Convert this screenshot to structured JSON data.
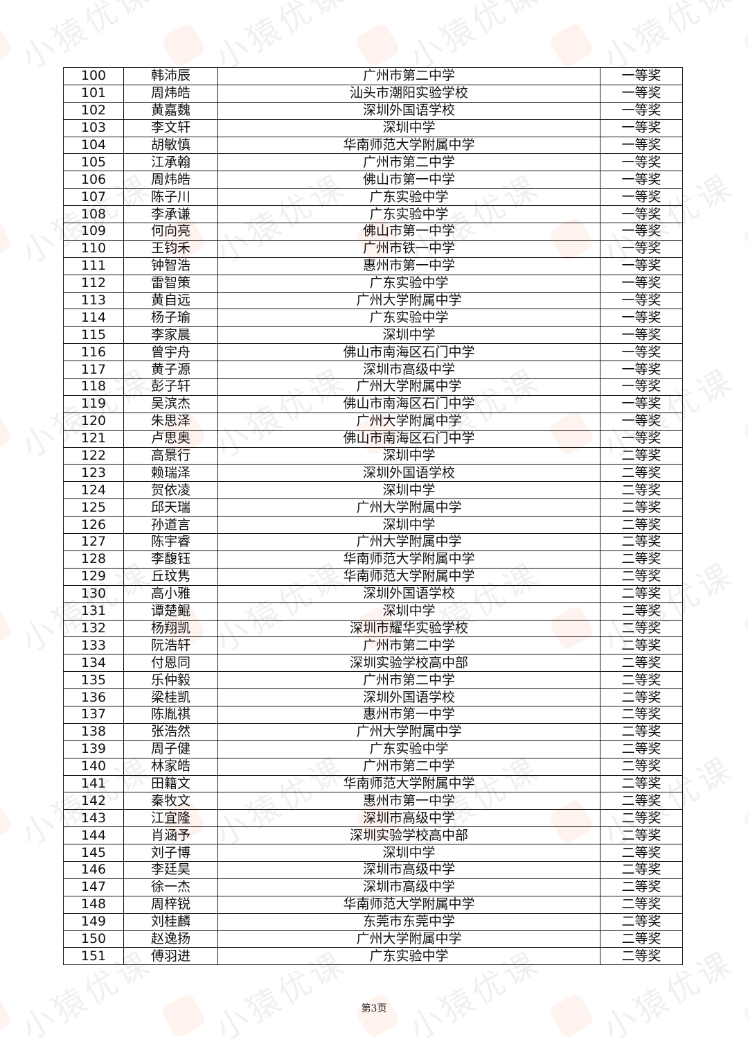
{
  "watermark": "小猿优课",
  "footer": {
    "page_label": "第3页"
  },
  "table": {
    "rows": [
      [
        "100",
        "韩沛辰",
        "广州市第二中学",
        "一等奖"
      ],
      [
        "101",
        "周炜皓",
        "汕头市潮阳实验学校",
        "一等奖"
      ],
      [
        "102",
        "黄嘉魏",
        "深圳外国语学校",
        "一等奖"
      ],
      [
        "103",
        "李文轩",
        "深圳中学",
        "一等奖"
      ],
      [
        "104",
        "胡敏慎",
        "华南师范大学附属中学",
        "一等奖"
      ],
      [
        "105",
        "江承翰",
        "广州市第二中学",
        "一等奖"
      ],
      [
        "106",
        "周炜皓",
        "佛山市第一中学",
        "一等奖"
      ],
      [
        "107",
        "陈子川",
        "广东实验中学",
        "一等奖"
      ],
      [
        "108",
        "李承谦",
        "广东实验中学",
        "一等奖"
      ],
      [
        "109",
        "何向亮",
        "佛山市第一中学",
        "一等奖"
      ],
      [
        "110",
        "王钧禾",
        "广州市铁一中学",
        "一等奖"
      ],
      [
        "111",
        "钟智浩",
        "惠州市第一中学",
        "一等奖"
      ],
      [
        "112",
        "雷智策",
        "广东实验中学",
        "一等奖"
      ],
      [
        "113",
        "黄自远",
        "广州大学附属中学",
        "一等奖"
      ],
      [
        "114",
        "杨子瑜",
        "广东实验中学",
        "一等奖"
      ],
      [
        "115",
        "李家晨",
        "深圳中学",
        "一等奖"
      ],
      [
        "116",
        "曾宇舟",
        "佛山市南海区石门中学",
        "一等奖"
      ],
      [
        "117",
        "黄子源",
        "深圳市高级中学",
        "一等奖"
      ],
      [
        "118",
        "彭子轩",
        "广州大学附属中学",
        "一等奖"
      ],
      [
        "119",
        "吴滨杰",
        "佛山市南海区石门中学",
        "一等奖"
      ],
      [
        "120",
        "朱思泽",
        "广州大学附属中学",
        "一等奖"
      ],
      [
        "121",
        "卢思奥",
        "佛山市南海区石门中学",
        "一等奖"
      ],
      [
        "122",
        "高景行",
        "深圳中学",
        "二等奖"
      ],
      [
        "123",
        "赖瑞泽",
        "深圳外国语学校",
        "二等奖"
      ],
      [
        "124",
        "贺依凌",
        "深圳中学",
        "二等奖"
      ],
      [
        "125",
        "邱天瑞",
        "广州大学附属中学",
        "二等奖"
      ],
      [
        "126",
        "孙道言",
        "深圳中学",
        "二等奖"
      ],
      [
        "127",
        "陈宇睿",
        "广州大学附属中学",
        "二等奖"
      ],
      [
        "128",
        "李馥钰",
        "华南师范大学附属中学",
        "二等奖"
      ],
      [
        "129",
        "丘玟隽",
        "华南师范大学附属中学",
        "二等奖"
      ],
      [
        "130",
        "高小雅",
        "深圳外国语学校",
        "二等奖"
      ],
      [
        "131",
        "谭楚鲲",
        "深圳中学",
        "二等奖"
      ],
      [
        "132",
        "杨翔凯",
        "深圳市耀华实验学校",
        "二等奖"
      ],
      [
        "133",
        "阮浩轩",
        "广州市第二中学",
        "二等奖"
      ],
      [
        "134",
        "付恩同",
        "深圳实验学校高中部",
        "二等奖"
      ],
      [
        "135",
        "乐仲毅",
        "广州市第二中学",
        "二等奖"
      ],
      [
        "136",
        "梁桂凯",
        "深圳外国语学校",
        "二等奖"
      ],
      [
        "137",
        "陈胤祺",
        "惠州市第一中学",
        "二等奖"
      ],
      [
        "138",
        "张浩然",
        "广州大学附属中学",
        "二等奖"
      ],
      [
        "139",
        "周子健",
        "广东实验中学",
        "二等奖"
      ],
      [
        "140",
        "林家皓",
        "广州市第二中学",
        "二等奖"
      ],
      [
        "141",
        "田籍文",
        "华南师范大学附属中学",
        "二等奖"
      ],
      [
        "142",
        "秦牧文",
        "惠州市第一中学",
        "二等奖"
      ],
      [
        "143",
        "江宜隆",
        "深圳市高级中学",
        "二等奖"
      ],
      [
        "144",
        "肖涵予",
        "深圳实验学校高中部",
        "二等奖"
      ],
      [
        "145",
        "刘子博",
        "深圳中学",
        "二等奖"
      ],
      [
        "146",
        "李廷昊",
        "深圳市高级中学",
        "二等奖"
      ],
      [
        "147",
        "徐一杰",
        "深圳市高级中学",
        "二等奖"
      ],
      [
        "148",
        "周梓锐",
        "华南师范大学附属中学",
        "二等奖"
      ],
      [
        "149",
        "刘桂麟",
        "东莞市东莞中学",
        "二等奖"
      ],
      [
        "150",
        "赵逸扬",
        "广州大学附属中学",
        "二等奖"
      ],
      [
        "151",
        "傅羽进",
        "广东实验中学",
        "二等奖"
      ]
    ]
  }
}
